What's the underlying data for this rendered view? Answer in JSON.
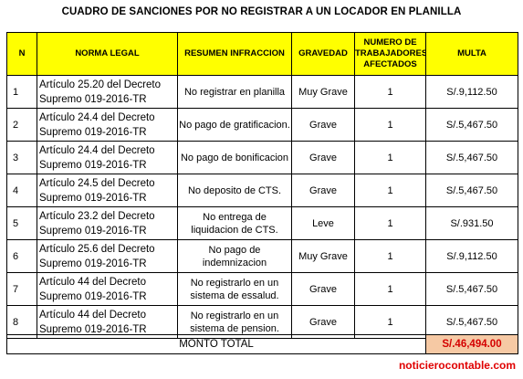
{
  "title": "CUADRO DE SANCIONES POR NO REGISTRAR A UN LOCADOR EN PLANILLA",
  "columns": {
    "n": "N",
    "norma": "NORMA LEGAL",
    "resumen": "RESUMEN INFRACCION",
    "gravedad": "GRAVEDAD",
    "numero": "NUMERO DE TRABAJADORES AFECTADOS",
    "multa": "MULTA"
  },
  "rows": [
    {
      "n": "1",
      "norma": "Artículo 25.20 del Decreto Supremo 019-2016-TR",
      "resumen": "No registrar en planilla",
      "gravedad": "Muy Grave",
      "numero": "1",
      "multa": "S/.9,112.50"
    },
    {
      "n": "2",
      "norma": "Artículo 24.4 del Decreto Supremo 019-2016-TR",
      "resumen": "No pago de gratificacion.",
      "gravedad": "Grave",
      "numero": "1",
      "multa": "S/.5,467.50"
    },
    {
      "n": "3",
      "norma": "Artículo 24.4 del Decreto Supremo 019-2016-TR",
      "resumen": "No pago de bonificacion",
      "gravedad": "Grave",
      "numero": "1",
      "multa": "S/.5,467.50"
    },
    {
      "n": "4",
      "norma": "Artículo 24.5 del Decreto Supremo 019-2016-TR",
      "resumen": "No deposito de CTS.",
      "gravedad": "Grave",
      "numero": "1",
      "multa": "S/.5,467.50"
    },
    {
      "n": "5",
      "norma": "Artículo 23.2 del Decreto Supremo 019-2016-TR",
      "resumen": "No entrega de liquidacion de CTS.",
      "gravedad": "Leve",
      "numero": "1",
      "multa": "S/.931.50"
    },
    {
      "n": "6",
      "norma": "Artículo 25.6 del Decreto Supremo 019-2016-TR",
      "resumen": "No pago de indemnizacion",
      "gravedad": "Muy Grave",
      "numero": "1",
      "multa": "S/.9,112.50"
    },
    {
      "n": "7",
      "norma": "Artículo 44 del Decreto Supremo 019-2016-TR",
      "resumen": "No registrarlo en un sistema de essalud.",
      "gravedad": "Grave",
      "numero": "1",
      "multa": "S/.5,467.50"
    },
    {
      "n": "8",
      "norma": "Artículo 44 del Decreto Supremo 019-2016-TR",
      "resumen": "No registrarlo en un sistema de pension.",
      "gravedad": "Grave",
      "numero": "1",
      "multa": "S/.5,467.50"
    }
  ],
  "total": {
    "label": "MONTO TOTAL",
    "value": "S/.46,494.00"
  },
  "footer": "noticierocontable.com",
  "colors": {
    "header_bg": "#ffff00",
    "total_bg": "#f6c9a4",
    "accent_red": "#d40000"
  }
}
